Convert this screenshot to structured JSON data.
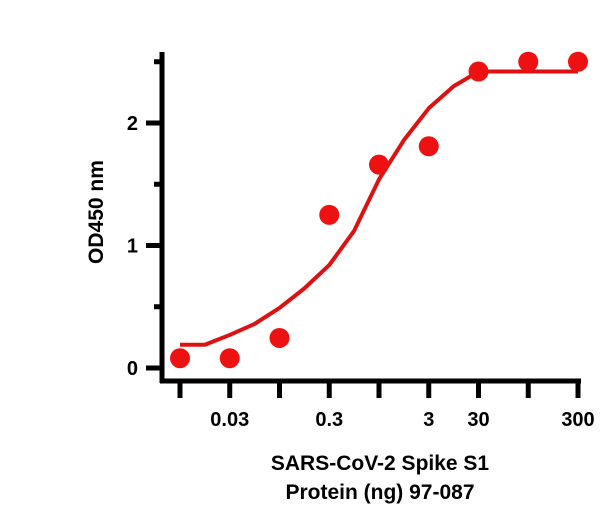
{
  "chart_data": {
    "type": "scatter",
    "title": "",
    "xlabel_lines": [
      "SARS-CoV-2 Spike S1",
      "Protein (ng) 97-087"
    ],
    "ylabel": "OD450 nm",
    "x_tick_labels": [
      "",
      "0.03",
      "",
      "0.3",
      "",
      "3",
      "30",
      "",
      "300"
    ],
    "ylim": [
      0,
      2.58
    ],
    "y_ticks": [
      0,
      1,
      2
    ],
    "y_minor_ticks": [
      0.5,
      1.5,
      2.5
    ],
    "grid": false,
    "point_color": "#ee1111",
    "curve_color": "#dd1111",
    "points": [
      0.08,
      0.08,
      0.245,
      1.25,
      1.66,
      1.81,
      2.42,
      2.5,
      2.5
    ],
    "fit_curve": [
      0.19,
      0.19,
      0.27,
      0.36,
      0.49,
      0.65,
      0.84,
      1.12,
      1.54,
      1.86,
      2.12,
      2.3,
      2.42,
      2.42,
      2.42,
      2.42,
      2.42
    ]
  }
}
